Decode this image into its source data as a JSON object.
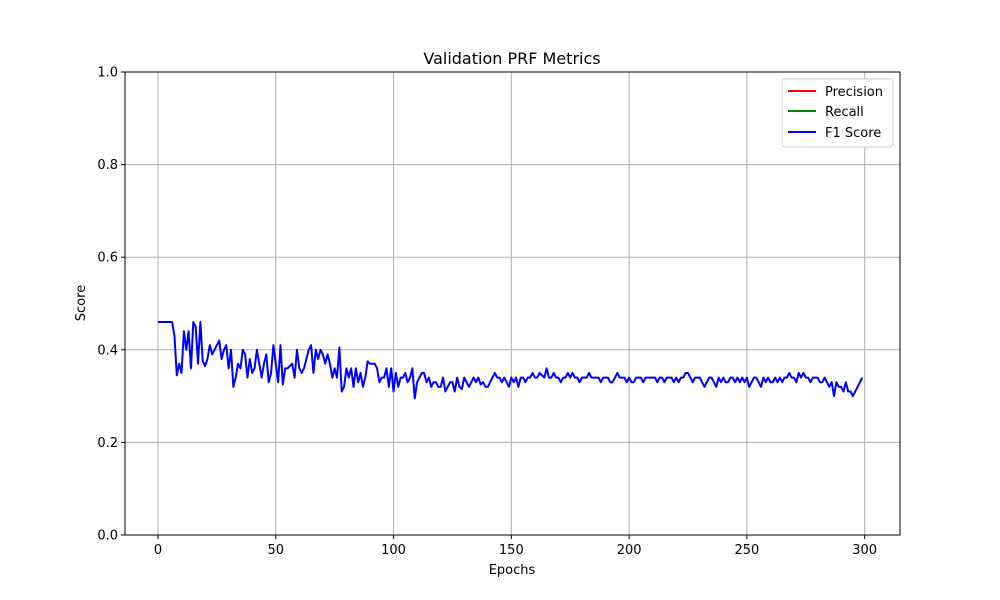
{
  "chart_data": {
    "type": "line",
    "title": "Validation PRF Metrics",
    "xlabel": "Epochs",
    "ylabel": "Score",
    "xlim": [
      -14,
      315
    ],
    "ylim": [
      0,
      1
    ],
    "xticks": [
      0,
      50,
      100,
      150,
      200,
      250,
      300
    ],
    "yticks": [
      0.0,
      0.2,
      0.4,
      0.6,
      0.8,
      1.0
    ],
    "grid": true,
    "legend_position": "top-right",
    "series": [
      {
        "name": "Precision",
        "color": "#ff0000",
        "x_start": 0,
        "x_step": 1,
        "values": []
      },
      {
        "name": "Recall",
        "color": "#008000",
        "x_start": 0,
        "x_step": 1,
        "values": []
      },
      {
        "name": "F1 Score",
        "color": "#0000ff",
        "x_start": 0,
        "x_step": 1,
        "values": [
          0.46,
          0.46,
          0.46,
          0.46,
          0.46,
          0.46,
          0.46,
          0.43,
          0.345,
          0.37,
          0.35,
          0.44,
          0.4,
          0.44,
          0.36,
          0.46,
          0.45,
          0.37,
          0.46,
          0.375,
          0.365,
          0.38,
          0.41,
          0.39,
          0.4,
          0.41,
          0.42,
          0.38,
          0.4,
          0.41,
          0.36,
          0.4,
          0.32,
          0.34,
          0.37,
          0.36,
          0.4,
          0.39,
          0.34,
          0.38,
          0.35,
          0.36,
          0.4,
          0.37,
          0.34,
          0.37,
          0.39,
          0.33,
          0.35,
          0.41,
          0.37,
          0.33,
          0.41,
          0.325,
          0.36,
          0.36,
          0.365,
          0.37,
          0.34,
          0.4,
          0.36,
          0.35,
          0.36,
          0.38,
          0.4,
          0.41,
          0.35,
          0.4,
          0.38,
          0.4,
          0.39,
          0.37,
          0.39,
          0.37,
          0.34,
          0.36,
          0.34,
          0.405,
          0.31,
          0.32,
          0.36,
          0.34,
          0.36,
          0.32,
          0.36,
          0.33,
          0.35,
          0.32,
          0.34,
          0.375,
          0.37,
          0.37,
          0.37,
          0.36,
          0.33,
          0.34,
          0.34,
          0.36,
          0.32,
          0.36,
          0.31,
          0.35,
          0.32,
          0.34,
          0.34,
          0.35,
          0.33,
          0.34,
          0.36,
          0.295,
          0.33,
          0.34,
          0.35,
          0.35,
          0.33,
          0.34,
          0.32,
          0.33,
          0.33,
          0.32,
          0.32,
          0.34,
          0.31,
          0.32,
          0.33,
          0.33,
          0.31,
          0.34,
          0.32,
          0.315,
          0.34,
          0.33,
          0.32,
          0.33,
          0.34,
          0.33,
          0.34,
          0.325,
          0.33,
          0.32,
          0.32,
          0.33,
          0.34,
          0.35,
          0.34,
          0.34,
          0.33,
          0.34,
          0.33,
          0.32,
          0.34,
          0.33,
          0.34,
          0.32,
          0.34,
          0.34,
          0.33,
          0.34,
          0.34,
          0.35,
          0.34,
          0.34,
          0.35,
          0.345,
          0.34,
          0.36,
          0.34,
          0.34,
          0.35,
          0.34,
          0.34,
          0.33,
          0.34,
          0.34,
          0.35,
          0.34,
          0.35,
          0.34,
          0.34,
          0.33,
          0.34,
          0.34,
          0.34,
          0.35,
          0.34,
          0.34,
          0.34,
          0.34,
          0.33,
          0.34,
          0.34,
          0.34,
          0.33,
          0.33,
          0.34,
          0.35,
          0.34,
          0.34,
          0.34,
          0.33,
          0.34,
          0.33,
          0.33,
          0.34,
          0.34,
          0.34,
          0.33,
          0.34,
          0.34,
          0.34,
          0.34,
          0.34,
          0.33,
          0.34,
          0.34,
          0.33,
          0.34,
          0.34,
          0.34,
          0.33,
          0.34,
          0.33,
          0.34,
          0.34,
          0.35,
          0.35,
          0.34,
          0.33,
          0.34,
          0.34,
          0.34,
          0.33,
          0.32,
          0.33,
          0.34,
          0.34,
          0.33,
          0.32,
          0.34,
          0.33,
          0.34,
          0.33,
          0.33,
          0.34,
          0.34,
          0.33,
          0.34,
          0.33,
          0.34,
          0.33,
          0.34,
          0.32,
          0.33,
          0.34,
          0.34,
          0.33,
          0.32,
          0.34,
          0.33,
          0.34,
          0.33,
          0.33,
          0.34,
          0.33,
          0.34,
          0.33,
          0.34,
          0.34,
          0.35,
          0.34,
          0.34,
          0.33,
          0.35,
          0.34,
          0.35,
          0.34,
          0.34,
          0.33,
          0.34,
          0.34,
          0.34,
          0.33,
          0.33,
          0.34,
          0.33,
          0.32,
          0.33,
          0.3,
          0.33,
          0.32,
          0.32,
          0.31,
          0.33,
          0.31,
          0.31,
          0.3,
          0.31,
          0.32,
          0.33,
          0.34
        ]
      }
    ]
  }
}
